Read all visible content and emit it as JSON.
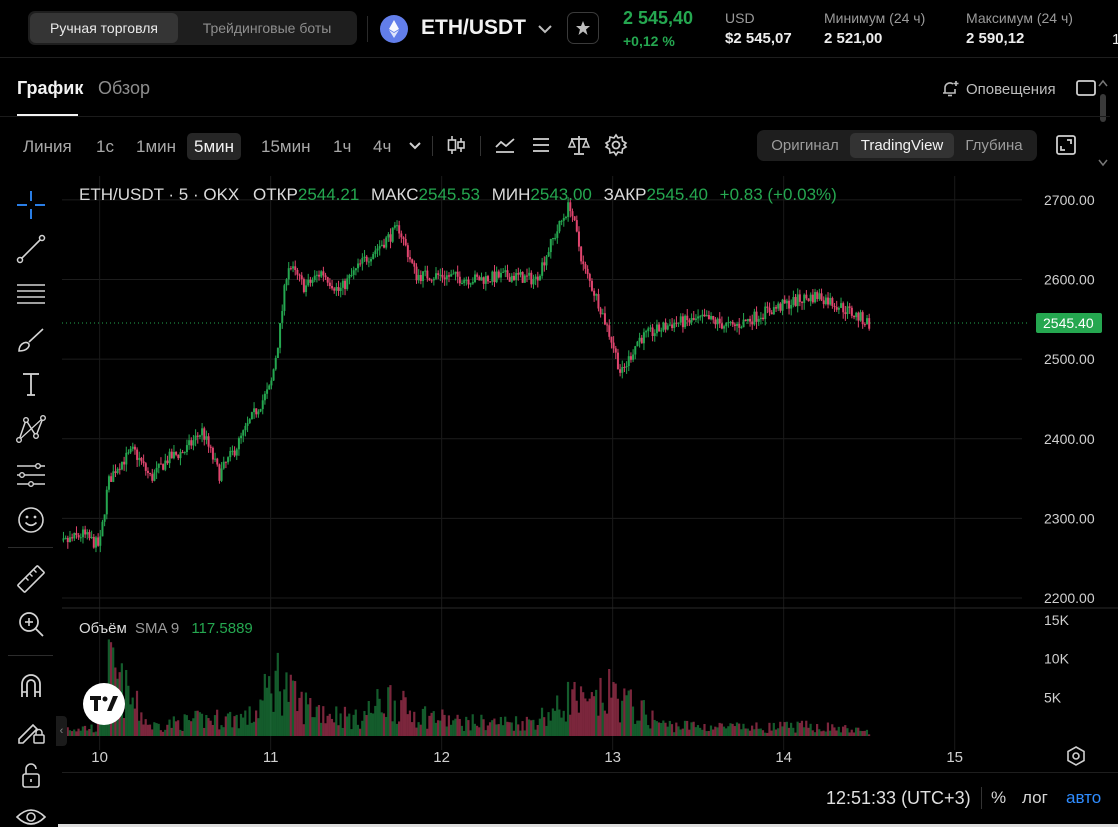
{
  "header": {
    "mode_tabs": [
      "Ручная торговля",
      "Трейдинговые боты"
    ],
    "pair": "ETH/USDT",
    "last_price": "2 545,40",
    "change_pct": "+0,12 %",
    "stats": [
      {
        "label": "USD",
        "value": "$2 545,07"
      },
      {
        "label": "Минимум (24 ч)",
        "value": "2 521,00"
      },
      {
        "label": "Максимум (24 ч)",
        "value": "2 590,12"
      }
    ],
    "clipped_char": "1"
  },
  "tabs": [
    "График",
    "Обзор"
  ],
  "alerts_label": "Оповещения",
  "toolbar": {
    "timeframes": [
      "Линия",
      "1с",
      "1мин",
      "5мин",
      "15мин",
      "1ч",
      "4ч"
    ],
    "active_timeframe": "5мин",
    "views": [
      "Оригинал",
      "TradingView",
      "Глубина"
    ],
    "active_view": "TradingView"
  },
  "left_tools": [
    "crosshair-icon",
    "trendline-icon",
    "fib-levels-icon",
    "brush-icon",
    "text-icon",
    "pattern-icon",
    "prediction-icon",
    "emoji-icon",
    "ruler-icon",
    "zoom-icon",
    "magnet-icon",
    "lock-drawing-icon",
    "lock-icon",
    "eye-icon"
  ],
  "legend": {
    "title": "ETH/USDT · 5 · OKX",
    "open_label": "ОТКР",
    "open": "2544.21",
    "high_label": "МАКС",
    "high": "2545.53",
    "low_label": "МИН",
    "low": "2543.00",
    "close_label": "ЗАКР",
    "close": "2545.40",
    "change": "+0.83 (+0.03%)"
  },
  "volume_legend": {
    "label": "Объём",
    "sma": "SMA 9",
    "value": "117.5889"
  },
  "bottom": {
    "clock": "12:51:33 (UTC+3)",
    "pct": "%",
    "log": "лог",
    "auto": "авто"
  },
  "colors": {
    "up": "#25a750",
    "down": "#e0456e",
    "accent": "#2f8cff",
    "eth": "#627eea"
  },
  "chart_data": {
    "type": "candlestick",
    "interval": "5",
    "y_ticks": [
      2200,
      2300,
      2400,
      2500,
      2600,
      2700
    ],
    "y_tick_labels": [
      "2200.00",
      "2300.00",
      "2400.00",
      "2500.00",
      "2600.00",
      "2700.00"
    ],
    "current_price_label": "2545.40",
    "current_price": 2545.4,
    "x_tick_labels": [
      "10",
      "11",
      "12",
      "13",
      "14",
      "15"
    ],
    "volume_ticks": [
      5000,
      10000,
      15000
    ],
    "volume_tick_labels": [
      "5K",
      "10K",
      "15K"
    ],
    "price_path": [
      [
        9.7,
        2255
      ],
      [
        9.8,
        2270
      ],
      [
        9.9,
        2280
      ],
      [
        10.0,
        2265
      ],
      [
        10.05,
        2345
      ],
      [
        10.1,
        2365
      ],
      [
        10.2,
        2385
      ],
      [
        10.3,
        2350
      ],
      [
        10.4,
        2375
      ],
      [
        10.5,
        2385
      ],
      [
        10.6,
        2410
      ],
      [
        10.7,
        2355
      ],
      [
        10.8,
        2390
      ],
      [
        10.9,
        2430
      ],
      [
        11.0,
        2465
      ],
      [
        11.05,
        2530
      ],
      [
        11.1,
        2620
      ],
      [
        11.2,
        2590
      ],
      [
        11.3,
        2610
      ],
      [
        11.4,
        2585
      ],
      [
        11.55,
        2625
      ],
      [
        11.65,
        2645
      ],
      [
        11.75,
        2665
      ],
      [
        11.85,
        2605
      ],
      [
        12.0,
        2605
      ],
      [
        12.2,
        2600
      ],
      [
        12.4,
        2605
      ],
      [
        12.55,
        2600
      ],
      [
        12.65,
        2650
      ],
      [
        12.75,
        2695
      ],
      [
        12.83,
        2615
      ],
      [
        12.92,
        2570
      ],
      [
        13.0,
        2520
      ],
      [
        13.05,
        2480
      ],
      [
        13.15,
        2525
      ],
      [
        13.35,
        2545
      ],
      [
        13.55,
        2550
      ],
      [
        13.7,
        2540
      ],
      [
        13.9,
        2560
      ],
      [
        14.1,
        2575
      ],
      [
        14.2,
        2580
      ],
      [
        14.3,
        2570
      ],
      [
        14.5,
        2545
      ]
    ],
    "volume_profile": [
      [
        10.0,
        1500
      ],
      [
        10.05,
        12000
      ],
      [
        10.3,
        1800
      ],
      [
        10.6,
        3000
      ],
      [
        10.9,
        3500
      ],
      [
        11.0,
        9000
      ],
      [
        11.05,
        11000
      ],
      [
        11.15,
        6000
      ],
      [
        11.5,
        3000
      ],
      [
        11.7,
        7000
      ],
      [
        11.8,
        4500
      ],
      [
        12.1,
        2500
      ],
      [
        12.5,
        2500
      ],
      [
        12.7,
        5000
      ],
      [
        12.75,
        7500
      ],
      [
        12.85,
        5000
      ],
      [
        13.0,
        8000
      ],
      [
        13.05,
        6500
      ],
      [
        13.3,
        2000
      ],
      [
        13.8,
        1500
      ],
      [
        14.2,
        1800
      ],
      [
        14.5,
        800
      ]
    ]
  }
}
